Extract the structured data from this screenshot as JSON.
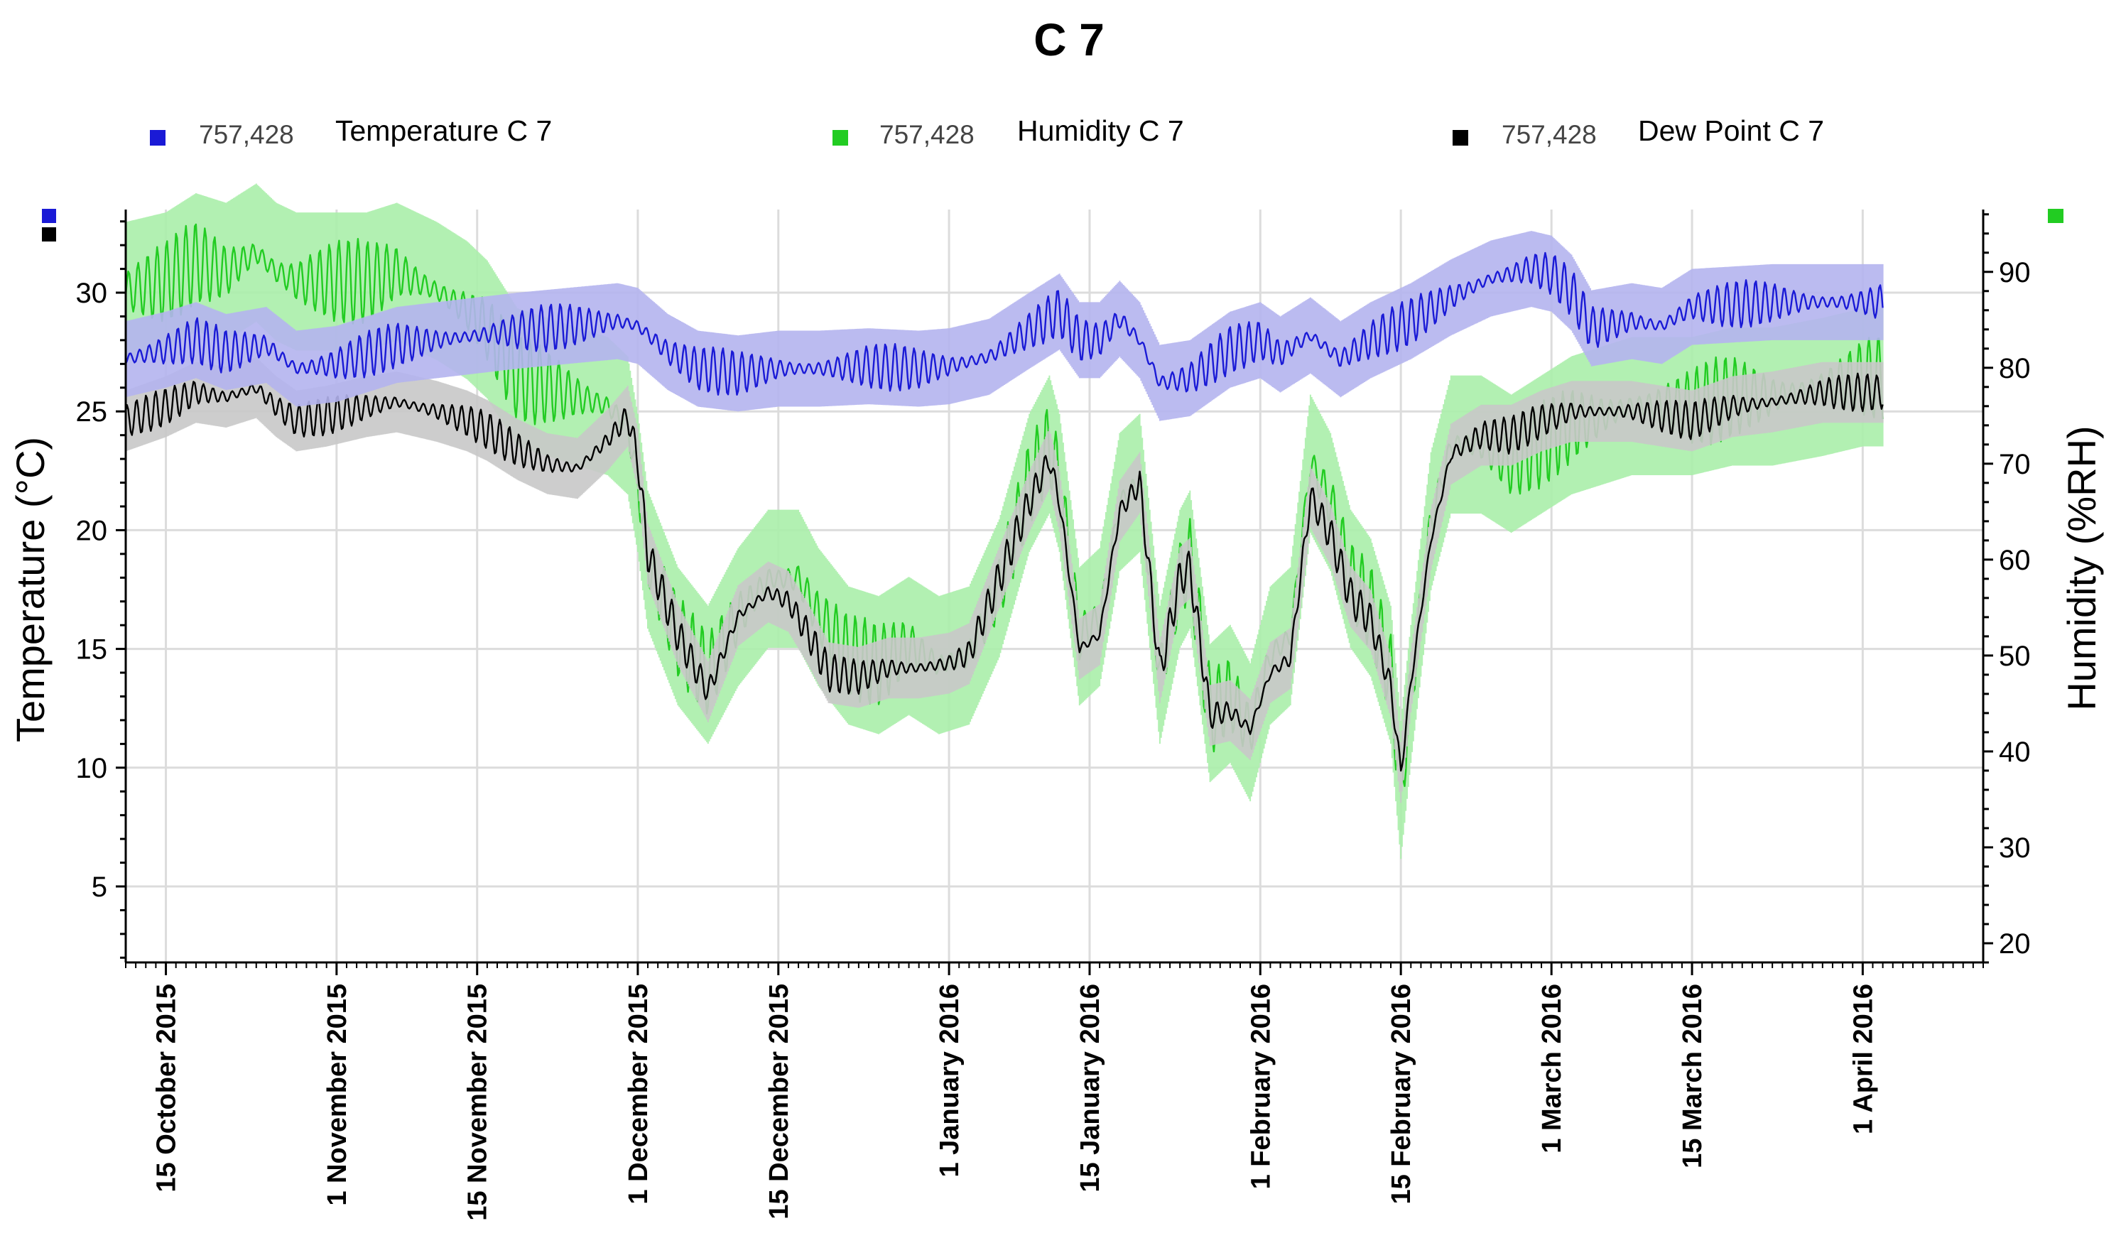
{
  "chart_data": {
    "type": "line",
    "title": "C 7",
    "legend_position": "top",
    "legend": [
      {
        "count": "757,428",
        "label": "Temperature C 7",
        "color": "#1a1ad6"
      },
      {
        "count": "757,428",
        "label": "Humidity C 7",
        "color": "#22cc22"
      },
      {
        "count": "757,428",
        "label": "Dew Point C 7",
        "color": "#000000"
      }
    ],
    "ylabel_left": "Temperature (°C)",
    "ylabel_right": "Humidity (%RH)",
    "y_left_range": [
      1.8,
      33.5
    ],
    "y_right_range": [
      18,
      96.5
    ],
    "y_left_ticks": [
      5,
      10,
      15,
      20,
      25,
      30
    ],
    "y_right_ticks": [
      20,
      30,
      40,
      50,
      60,
      70,
      80,
      90
    ],
    "x_range_days": [
      -4,
      181
    ],
    "grid": true,
    "x_ticks": [
      {
        "day": 0,
        "label": "15 October 2015"
      },
      {
        "day": 17,
        "label": "1 November 2015"
      },
      {
        "day": 31,
        "label": "15 November 2015"
      },
      {
        "day": 47,
        "label": "1 December 2015"
      },
      {
        "day": 61,
        "label": "15 December 2015"
      },
      {
        "day": 78,
        "label": "1 January 2016"
      },
      {
        "day": 92,
        "label": "15 January 2016"
      },
      {
        "day": 109,
        "label": "1 February 2016"
      },
      {
        "day": 123,
        "label": "15 February 2016"
      },
      {
        "day": 138,
        "label": "1 March 2016"
      },
      {
        "day": 152,
        "label": "15 March 2016"
      },
      {
        "day": 169,
        "label": "1 April 2016"
      }
    ],
    "series": [
      {
        "name": "Temperature C 7",
        "axis": "left",
        "color": "#1a1ad6",
        "shade": "#b4b4ee",
        "amp": 1.0,
        "points": [
          [
            -4,
            27.2
          ],
          [
            0,
            27.6
          ],
          [
            3,
            28.0
          ],
          [
            6,
            27.5
          ],
          [
            10,
            27.8
          ],
          [
            13,
            26.8
          ],
          [
            17,
            27.0
          ],
          [
            20,
            27.4
          ],
          [
            23,
            27.8
          ],
          [
            27,
            28.0
          ],
          [
            31,
            28.2
          ],
          [
            35,
            28.4
          ],
          [
            40,
            28.6
          ],
          [
            45,
            28.8
          ],
          [
            47,
            28.6
          ],
          [
            50,
            27.5
          ],
          [
            53,
            26.8
          ],
          [
            57,
            26.6
          ],
          [
            61,
            26.8
          ],
          [
            65,
            26.8
          ],
          [
            70,
            26.9
          ],
          [
            75,
            26.8
          ],
          [
            78,
            26.9
          ],
          [
            82,
            27.3
          ],
          [
            86,
            28.4
          ],
          [
            89,
            29.2
          ],
          [
            91,
            28.0
          ],
          [
            93,
            28.0
          ],
          [
            95,
            28.9
          ],
          [
            97,
            28.0
          ],
          [
            99,
            26.2
          ],
          [
            102,
            26.4
          ],
          [
            106,
            27.6
          ],
          [
            109,
            28.0
          ],
          [
            111,
            27.4
          ],
          [
            114,
            28.2
          ],
          [
            117,
            27.2
          ],
          [
            120,
            28.0
          ],
          [
            124,
            28.8
          ],
          [
            128,
            29.8
          ],
          [
            132,
            30.6
          ],
          [
            136,
            31.0
          ],
          [
            138,
            30.8
          ],
          [
            140,
            30.0
          ],
          [
            142,
            28.5
          ],
          [
            146,
            28.8
          ],
          [
            149,
            28.6
          ],
          [
            152,
            29.4
          ],
          [
            156,
            29.5
          ],
          [
            160,
            29.6
          ],
          [
            165,
            29.6
          ],
          [
            169,
            29.6
          ],
          [
            171,
            29.6
          ]
        ]
      },
      {
        "name": "Humidity C 7",
        "axis": "right",
        "color": "#22cc22",
        "shade": "#aaeeaa",
        "amp": 4.5,
        "points": [
          [
            -4,
            88
          ],
          [
            0,
            89
          ],
          [
            3,
            91
          ],
          [
            6,
            90
          ],
          [
            9,
            92
          ],
          [
            11,
            90
          ],
          [
            13,
            89
          ],
          [
            16,
            89
          ],
          [
            20,
            89
          ],
          [
            23,
            90
          ],
          [
            27,
            88
          ],
          [
            30,
            86
          ],
          [
            32,
            84
          ],
          [
            35,
            79
          ],
          [
            38,
            78
          ],
          [
            41,
            77
          ],
          [
            44,
            76
          ],
          [
            46,
            74
          ],
          [
            47,
            68
          ],
          [
            48,
            60
          ],
          [
            51,
            52
          ],
          [
            54,
            48
          ],
          [
            57,
            54
          ],
          [
            60,
            58
          ],
          [
            63,
            58
          ],
          [
            65,
            54
          ],
          [
            68,
            50
          ],
          [
            71,
            49
          ],
          [
            74,
            51
          ],
          [
            77,
            49
          ],
          [
            80,
            50
          ],
          [
            83,
            57
          ],
          [
            86,
            68
          ],
          [
            88,
            72
          ],
          [
            89,
            68
          ],
          [
            91,
            52
          ],
          [
            93,
            54
          ],
          [
            95,
            66
          ],
          [
            97,
            68
          ],
          [
            99,
            48
          ],
          [
            101,
            58
          ],
          [
            102,
            60
          ],
          [
            104,
            44
          ],
          [
            106,
            46
          ],
          [
            108,
            42
          ],
          [
            110,
            50
          ],
          [
            112,
            52
          ],
          [
            114,
            70
          ],
          [
            116,
            66
          ],
          [
            118,
            58
          ],
          [
            120,
            55
          ],
          [
            122,
            48
          ],
          [
            123,
            36
          ],
          [
            124,
            46
          ],
          [
            126,
            64
          ],
          [
            128,
            72
          ],
          [
            131,
            72
          ],
          [
            134,
            70
          ],
          [
            137,
            72
          ],
          [
            140,
            74
          ],
          [
            143,
            75
          ],
          [
            146,
            76
          ],
          [
            149,
            76
          ],
          [
            152,
            76
          ],
          [
            156,
            77
          ],
          [
            160,
            77
          ],
          [
            165,
            78
          ],
          [
            169,
            79
          ],
          [
            171,
            79
          ]
        ]
      },
      {
        "name": "Dew Point C 7",
        "axis": "left",
        "color": "#000000",
        "shade": "#c8c8c8",
        "amp": 0.8,
        "points": [
          [
            -4,
            24.6
          ],
          [
            0,
            25.2
          ],
          [
            3,
            25.8
          ],
          [
            6,
            25.6
          ],
          [
            9,
            26.0
          ],
          [
            11,
            25.2
          ],
          [
            13,
            24.6
          ],
          [
            16,
            24.8
          ],
          [
            20,
            25.2
          ],
          [
            23,
            25.4
          ],
          [
            27,
            25.0
          ],
          [
            30,
            24.6
          ],
          [
            32,
            24.2
          ],
          [
            35,
            23.4
          ],
          [
            38,
            22.8
          ],
          [
            41,
            22.6
          ],
          [
            44,
            23.8
          ],
          [
            46,
            24.8
          ],
          [
            47,
            23.0
          ],
          [
            48,
            19.0
          ],
          [
            51,
            15.6
          ],
          [
            54,
            13.2
          ],
          [
            57,
            16.4
          ],
          [
            60,
            17.4
          ],
          [
            62,
            17.0
          ],
          [
            64,
            15.6
          ],
          [
            66,
            14.0
          ],
          [
            69,
            13.8
          ],
          [
            72,
            14.2
          ],
          [
            75,
            14.2
          ],
          [
            78,
            14.4
          ],
          [
            80,
            14.8
          ],
          [
            83,
            18.0
          ],
          [
            86,
            21.2
          ],
          [
            88,
            23.0
          ],
          [
            89,
            21.2
          ],
          [
            91,
            15.0
          ],
          [
            93,
            15.6
          ],
          [
            95,
            20.8
          ],
          [
            97,
            22.0
          ],
          [
            99,
            14.0
          ],
          [
            101,
            18.0
          ],
          [
            102,
            18.4
          ],
          [
            104,
            12.2
          ],
          [
            106,
            12.4
          ],
          [
            108,
            11.6
          ],
          [
            110,
            14.0
          ],
          [
            112,
            14.6
          ],
          [
            114,
            21.4
          ],
          [
            116,
            19.8
          ],
          [
            118,
            17.2
          ],
          [
            120,
            16.2
          ],
          [
            122,
            13.4
          ],
          [
            123,
            9.8
          ],
          [
            124,
            13.6
          ],
          [
            126,
            19.6
          ],
          [
            128,
            23.2
          ],
          [
            131,
            24.0
          ],
          [
            134,
            24.0
          ],
          [
            137,
            24.6
          ],
          [
            140,
            25.0
          ],
          [
            143,
            25.0
          ],
          [
            146,
            25.0
          ],
          [
            149,
            24.8
          ],
          [
            152,
            24.6
          ],
          [
            156,
            25.2
          ],
          [
            160,
            25.4
          ],
          [
            165,
            25.8
          ],
          [
            169,
            25.8
          ],
          [
            171,
            25.8
          ]
        ]
      }
    ]
  }
}
